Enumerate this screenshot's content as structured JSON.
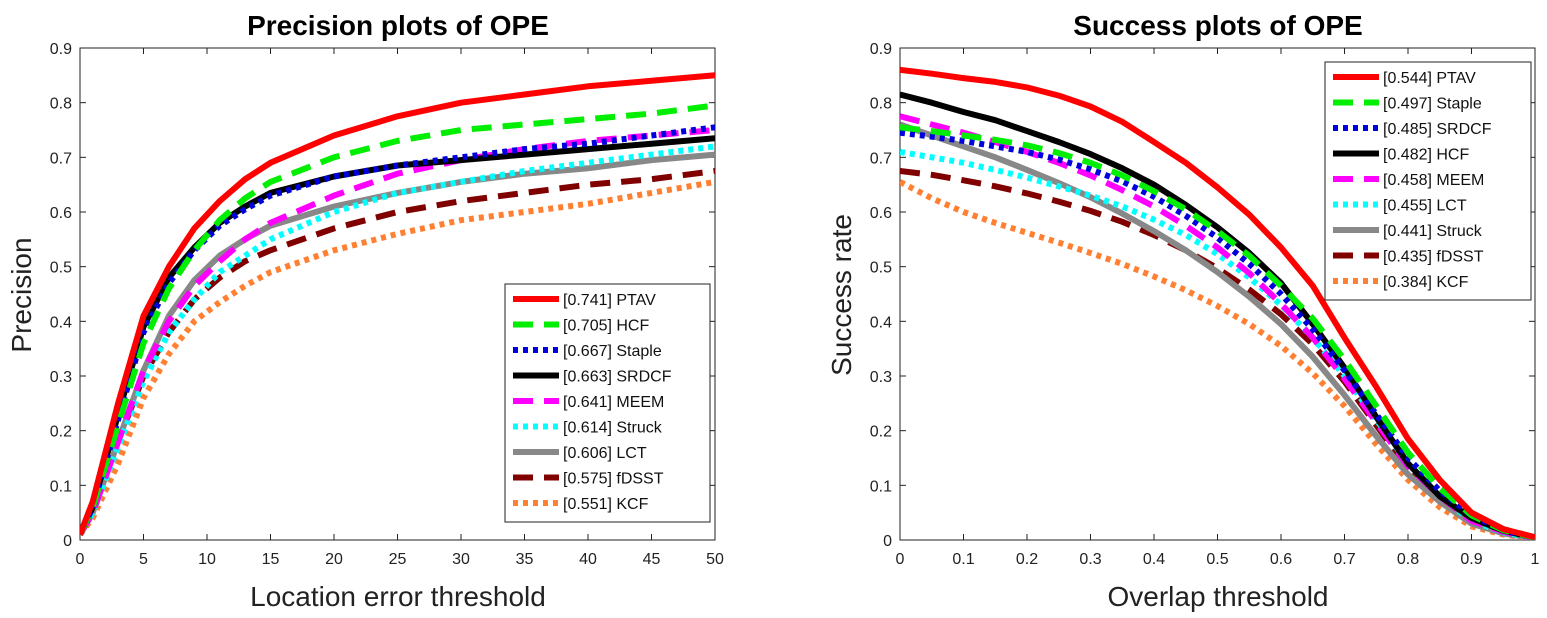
{
  "chart_data": [
    {
      "type": "line",
      "title": "Precision plots of OPE",
      "xlabel": "Location error threshold",
      "ylabel": "Precision",
      "xlim": [
        0,
        50
      ],
      "ylim": [
        0,
        0.9
      ],
      "xticks": [
        0,
        5,
        10,
        15,
        20,
        25,
        30,
        35,
        40,
        45,
        50
      ],
      "yticks": [
        0,
        0.1,
        0.2,
        0.3,
        0.4,
        0.5,
        0.6,
        0.7,
        0.8,
        0.9
      ],
      "grid": false,
      "legend_position": "bottom-right",
      "x": [
        0,
        1,
        3,
        5,
        7,
        9,
        11,
        13,
        15,
        20,
        25,
        30,
        35,
        40,
        45,
        50
      ],
      "series": [
        {
          "name": "[0.741] PTAV",
          "color": "#ff0000",
          "style": "solid",
          "values": [
            0.01,
            0.07,
            0.25,
            0.41,
            0.5,
            0.57,
            0.62,
            0.66,
            0.69,
            0.74,
            0.775,
            0.8,
            0.815,
            0.83,
            0.84,
            0.85
          ]
        },
        {
          "name": "[0.705] HCF",
          "color": "#00ee00",
          "style": "dashed",
          "values": [
            0.01,
            0.06,
            0.21,
            0.36,
            0.46,
            0.53,
            0.585,
            0.625,
            0.655,
            0.7,
            0.73,
            0.75,
            0.76,
            0.77,
            0.78,
            0.795
          ]
        },
        {
          "name": "[0.667] Staple",
          "color": "#0000dd",
          "style": "dotted",
          "values": [
            0.01,
            0.06,
            0.22,
            0.38,
            0.47,
            0.53,
            0.575,
            0.605,
            0.63,
            0.665,
            0.685,
            0.7,
            0.715,
            0.725,
            0.74,
            0.755
          ]
        },
        {
          "name": "[0.663] SRDCF",
          "color": "#000000",
          "style": "solid",
          "values": [
            0.01,
            0.06,
            0.23,
            0.39,
            0.48,
            0.535,
            0.58,
            0.61,
            0.635,
            0.665,
            0.685,
            0.695,
            0.705,
            0.715,
            0.725,
            0.735
          ]
        },
        {
          "name": "[0.641] MEEM",
          "color": "#ff00ff",
          "style": "dashed",
          "values": [
            0.01,
            0.05,
            0.18,
            0.31,
            0.4,
            0.465,
            0.51,
            0.55,
            0.58,
            0.63,
            0.67,
            0.695,
            0.715,
            0.73,
            0.74,
            0.75
          ]
        },
        {
          "name": "[0.614] Struck",
          "color": "#00ffff",
          "style": "dotted",
          "values": [
            0.01,
            0.05,
            0.17,
            0.29,
            0.38,
            0.44,
            0.49,
            0.52,
            0.55,
            0.6,
            0.635,
            0.655,
            0.675,
            0.69,
            0.705,
            0.72
          ]
        },
        {
          "name": "[0.606] LCT",
          "color": "#888888",
          "style": "solid",
          "values": [
            0.01,
            0.05,
            0.18,
            0.31,
            0.41,
            0.475,
            0.52,
            0.55,
            0.575,
            0.61,
            0.635,
            0.655,
            0.67,
            0.68,
            0.695,
            0.705
          ]
        },
        {
          "name": "[0.575] fDSST",
          "color": "#800000",
          "style": "dashed",
          "values": [
            0.01,
            0.05,
            0.18,
            0.3,
            0.38,
            0.44,
            0.48,
            0.51,
            0.53,
            0.57,
            0.6,
            0.62,
            0.635,
            0.65,
            0.66,
            0.675
          ]
        },
        {
          "name": "[0.551] KCF",
          "color": "#ff8033",
          "style": "dotted",
          "values": [
            0.01,
            0.04,
            0.14,
            0.26,
            0.34,
            0.4,
            0.435,
            0.465,
            0.49,
            0.53,
            0.56,
            0.585,
            0.6,
            0.615,
            0.635,
            0.655
          ]
        }
      ]
    },
    {
      "type": "line",
      "title": "Success plots of OPE",
      "xlabel": "Overlap threshold",
      "ylabel": "Success rate",
      "xlim": [
        0,
        1
      ],
      "ylim": [
        0,
        0.9
      ],
      "xticks": [
        0,
        0.1,
        0.2,
        0.3,
        0.4,
        0.5,
        0.6,
        0.7,
        0.8,
        0.9,
        1
      ],
      "yticks": [
        0,
        0.1,
        0.2,
        0.3,
        0.4,
        0.5,
        0.6,
        0.7,
        0.8,
        0.9
      ],
      "grid": false,
      "legend_position": "top-right",
      "x": [
        0,
        0.05,
        0.1,
        0.15,
        0.2,
        0.25,
        0.3,
        0.35,
        0.4,
        0.45,
        0.5,
        0.55,
        0.6,
        0.65,
        0.7,
        0.75,
        0.8,
        0.85,
        0.9,
        0.95,
        1
      ],
      "series": [
        {
          "name": "[0.544] PTAV",
          "color": "#ff0000",
          "style": "solid",
          "values": [
            0.86,
            0.853,
            0.845,
            0.838,
            0.828,
            0.813,
            0.793,
            0.765,
            0.728,
            0.69,
            0.645,
            0.595,
            0.535,
            0.465,
            0.37,
            0.28,
            0.185,
            0.11,
            0.05,
            0.02,
            0.005
          ]
        },
        {
          "name": "[0.497] Staple",
          "color": "#00ee00",
          "style": "dashed",
          "values": [
            0.755,
            0.748,
            0.74,
            0.732,
            0.722,
            0.708,
            0.69,
            0.667,
            0.638,
            0.605,
            0.565,
            0.52,
            0.465,
            0.405,
            0.33,
            0.245,
            0.16,
            0.095,
            0.045,
            0.018,
            0.004
          ]
        },
        {
          "name": "[0.485] SRDCF",
          "color": "#0000dd",
          "style": "dotted",
          "values": [
            0.745,
            0.738,
            0.73,
            0.72,
            0.71,
            0.696,
            0.678,
            0.656,
            0.628,
            0.593,
            0.553,
            0.505,
            0.45,
            0.385,
            0.31,
            0.23,
            0.15,
            0.09,
            0.045,
            0.018,
            0.004
          ]
        },
        {
          "name": "[0.482] HCF",
          "color": "#000000",
          "style": "solid",
          "values": [
            0.815,
            0.8,
            0.783,
            0.768,
            0.748,
            0.728,
            0.706,
            0.68,
            0.65,
            0.613,
            0.572,
            0.525,
            0.47,
            0.395,
            0.315,
            0.225,
            0.14,
            0.08,
            0.04,
            0.017,
            0.004
          ]
        },
        {
          "name": "[0.458] MEEM",
          "color": "#ff00ff",
          "style": "dashed",
          "values": [
            0.775,
            0.76,
            0.745,
            0.728,
            0.71,
            0.69,
            0.667,
            0.64,
            0.61,
            0.575,
            0.535,
            0.488,
            0.432,
            0.37,
            0.295,
            0.215,
            0.135,
            0.08,
            0.035,
            0.015,
            0.003
          ]
        },
        {
          "name": "[0.455] LCT",
          "color": "#00ffff",
          "style": "dotted",
          "values": [
            0.71,
            0.7,
            0.69,
            0.677,
            0.663,
            0.647,
            0.63,
            0.61,
            0.586,
            0.558,
            0.523,
            0.48,
            0.43,
            0.37,
            0.3,
            0.22,
            0.14,
            0.08,
            0.035,
            0.014,
            0.003
          ]
        },
        {
          "name": "[0.441] Struck",
          "color": "#888888",
          "style": "solid",
          "values": [
            0.76,
            0.74,
            0.72,
            0.7,
            0.677,
            0.653,
            0.627,
            0.597,
            0.565,
            0.53,
            0.49,
            0.445,
            0.395,
            0.335,
            0.265,
            0.19,
            0.12,
            0.07,
            0.03,
            0.012,
            0.003
          ]
        },
        {
          "name": "[0.435] fDSST",
          "color": "#800000",
          "style": "dashed",
          "values": [
            0.675,
            0.668,
            0.658,
            0.647,
            0.634,
            0.619,
            0.602,
            0.582,
            0.558,
            0.53,
            0.497,
            0.458,
            0.413,
            0.358,
            0.29,
            0.21,
            0.13,
            0.08,
            0.045,
            0.02,
            0.005
          ]
        },
        {
          "name": "[0.384] KCF",
          "color": "#ff8033",
          "style": "dotted",
          "values": [
            0.655,
            0.625,
            0.6,
            0.58,
            0.562,
            0.544,
            0.525,
            0.505,
            0.482,
            0.457,
            0.428,
            0.395,
            0.355,
            0.305,
            0.245,
            0.175,
            0.11,
            0.06,
            0.025,
            0.01,
            0.002
          ]
        }
      ]
    }
  ]
}
